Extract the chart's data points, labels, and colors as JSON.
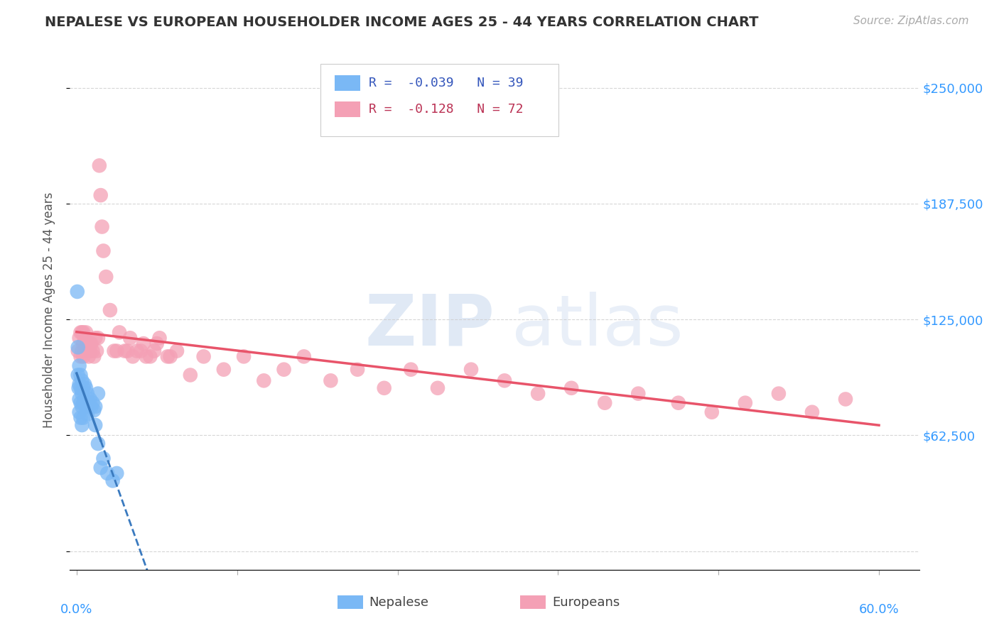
{
  "title": "NEPALESE VS EUROPEAN HOUSEHOLDER INCOME AGES 25 - 44 YEARS CORRELATION CHART",
  "source": "Source: ZipAtlas.com",
  "ylabel": "Householder Income Ages 25 - 44 years",
  "yticks": [
    0,
    62500,
    125000,
    187500,
    250000
  ],
  "ytick_labels": [
    "",
    "$62,500",
    "$125,000",
    "$187,500",
    "$250,000"
  ],
  "ylim": [
    -10000,
    270000
  ],
  "xlim": [
    -0.005,
    0.63
  ],
  "legend_nepalese_R": "-0.039",
  "legend_nepalese_N": "39",
  "legend_european_R": "-0.128",
  "legend_european_N": "72",
  "nepalese_color": "#7ab8f5",
  "european_color": "#f4a0b5",
  "nepalese_line_color": "#3a7abf",
  "european_line_color": "#e8546a",
  "background_color": "#ffffff",
  "nepalese_x": [
    0.0005,
    0.001,
    0.001,
    0.0015,
    0.002,
    0.002,
    0.002,
    0.002,
    0.003,
    0.003,
    0.003,
    0.003,
    0.004,
    0.004,
    0.004,
    0.004,
    0.005,
    0.005,
    0.005,
    0.006,
    0.006,
    0.007,
    0.007,
    0.008,
    0.008,
    0.009,
    0.01,
    0.011,
    0.012,
    0.013,
    0.014,
    0.016,
    0.018,
    0.02,
    0.023,
    0.027,
    0.03,
    0.014,
    0.016
  ],
  "nepalese_y": [
    140000,
    95000,
    110000,
    88000,
    100000,
    90000,
    82000,
    75000,
    95000,
    88000,
    80000,
    72000,
    92000,
    85000,
    78000,
    68000,
    88000,
    80000,
    72000,
    90000,
    82000,
    88000,
    78000,
    85000,
    74000,
    80000,
    82000,
    78000,
    80000,
    76000,
    78000,
    85000,
    45000,
    50000,
    42000,
    38000,
    42000,
    68000,
    58000
  ],
  "european_x": [
    0.001,
    0.002,
    0.003,
    0.003,
    0.004,
    0.004,
    0.005,
    0.005,
    0.005,
    0.006,
    0.006,
    0.007,
    0.007,
    0.008,
    0.008,
    0.009,
    0.01,
    0.01,
    0.011,
    0.012,
    0.013,
    0.014,
    0.015,
    0.016,
    0.017,
    0.018,
    0.019,
    0.02,
    0.022,
    0.025,
    0.028,
    0.032,
    0.036,
    0.04,
    0.045,
    0.05,
    0.055,
    0.06,
    0.068,
    0.075,
    0.085,
    0.095,
    0.11,
    0.125,
    0.14,
    0.155,
    0.17,
    0.19,
    0.21,
    0.23,
    0.25,
    0.27,
    0.295,
    0.32,
    0.345,
    0.37,
    0.395,
    0.42,
    0.45,
    0.475,
    0.5,
    0.525,
    0.55,
    0.575,
    0.03,
    0.038,
    0.042,
    0.048,
    0.052,
    0.058,
    0.062,
    0.07
  ],
  "european_y": [
    108000,
    115000,
    105000,
    118000,
    108000,
    118000,
    112000,
    105000,
    118000,
    108000,
    115000,
    108000,
    118000,
    108000,
    112000,
    105000,
    112000,
    108000,
    112000,
    108000,
    105000,
    115000,
    108000,
    115000,
    208000,
    192000,
    175000,
    162000,
    148000,
    130000,
    108000,
    118000,
    108000,
    115000,
    108000,
    112000,
    105000,
    112000,
    105000,
    108000,
    95000,
    105000,
    98000,
    105000,
    92000,
    98000,
    105000,
    92000,
    98000,
    88000,
    98000,
    88000,
    98000,
    92000,
    85000,
    88000,
    80000,
    85000,
    80000,
    75000,
    80000,
    85000,
    75000,
    82000,
    108000,
    108000,
    105000,
    108000,
    105000,
    108000,
    115000,
    105000
  ]
}
